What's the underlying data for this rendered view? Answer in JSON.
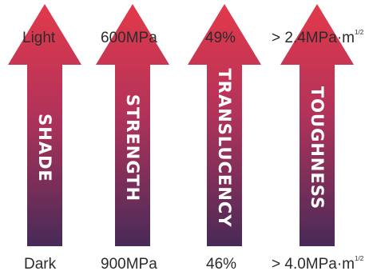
{
  "gradient": {
    "top": "#e3394a",
    "bottom": "#482a58"
  },
  "arrows": [
    {
      "name": "shade",
      "label": "SHADE",
      "top_value": "Light",
      "bottom_value": "Dark"
    },
    {
      "name": "strength",
      "label": "STRENGTH",
      "top_value": "600MPa",
      "bottom_value": "900MPa"
    },
    {
      "name": "translucency",
      "label": "TRANSLUCENCY",
      "top_value": "49%",
      "bottom_value": "46%"
    },
    {
      "name": "toughness",
      "label": "TOUGHNESS",
      "top_value": "> 2.4MPa·m",
      "top_value_sup": "1/2",
      "bottom_value": "> 4.0MPa·m",
      "bottom_value_sup": "1/2"
    }
  ]
}
